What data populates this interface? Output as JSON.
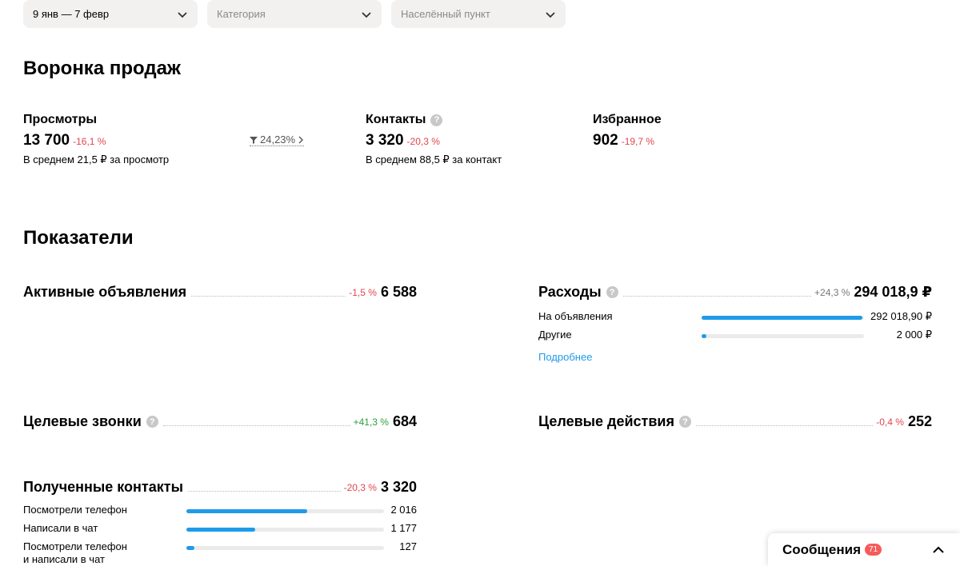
{
  "filters": {
    "date": "9 янв — 7 февр",
    "category": "Категория",
    "city": "Населённый пункт"
  },
  "funnel": {
    "title": "Воронка продаж",
    "views": {
      "label": "Просмотры",
      "value": "13 700",
      "change": "-16,1 %",
      "sub": "В среднем 21,5 ₽ за просмотр"
    },
    "conversion": "24,23%",
    "contacts": {
      "label": "Контакты",
      "value": "3 320",
      "change": "-20,3 %",
      "sub": "В среднем 88,5 ₽ за контакт"
    },
    "favorites": {
      "label": "Избранное",
      "value": "902",
      "change": "-19,7 %"
    }
  },
  "metrics": {
    "title": "Показатели",
    "active_ads": {
      "label": "Активные объявления",
      "change": "-1,5 %",
      "value": "6 588"
    },
    "expenses": {
      "label": "Расходы",
      "change": "+24,3 %",
      "value": "294 018,9 ₽",
      "rows": [
        {
          "label": "На объявления",
          "value": "292 018,90 ₽",
          "fill": 0.99
        },
        {
          "label": "Другие",
          "value": "2 000 ₽",
          "fill": 0.03
        }
      ],
      "more": "Подробнее"
    },
    "target_calls": {
      "label": "Целевые звонки",
      "change": "+41,3 %",
      "value": "684"
    },
    "target_actions": {
      "label": "Целевые действия",
      "change": "-0,4 %",
      "value": "252"
    },
    "contacts_received": {
      "label": "Полученные контакты",
      "change": "-20,3 %",
      "value": "3 320",
      "rows": [
        {
          "label": "Посмотрели телефон",
          "value": "2 016",
          "fill": 0.61
        },
        {
          "label": "Написали в чат",
          "value": "1 177",
          "fill": 0.35
        },
        {
          "label": "Посмотрели телефон",
          "label2": "и написали в чат",
          "value": "127",
          "fill": 0.04
        }
      ]
    }
  },
  "messages": {
    "label": "Сообщения",
    "count": "71"
  },
  "colors": {
    "accent": "#1e9be9",
    "negative": "#e0464e",
    "positive": "#2b9e3c"
  },
  "icons": [
    "chevron-down-icon",
    "filter-icon",
    "chevron-right-icon",
    "help-icon",
    "chevron-up-icon"
  ]
}
